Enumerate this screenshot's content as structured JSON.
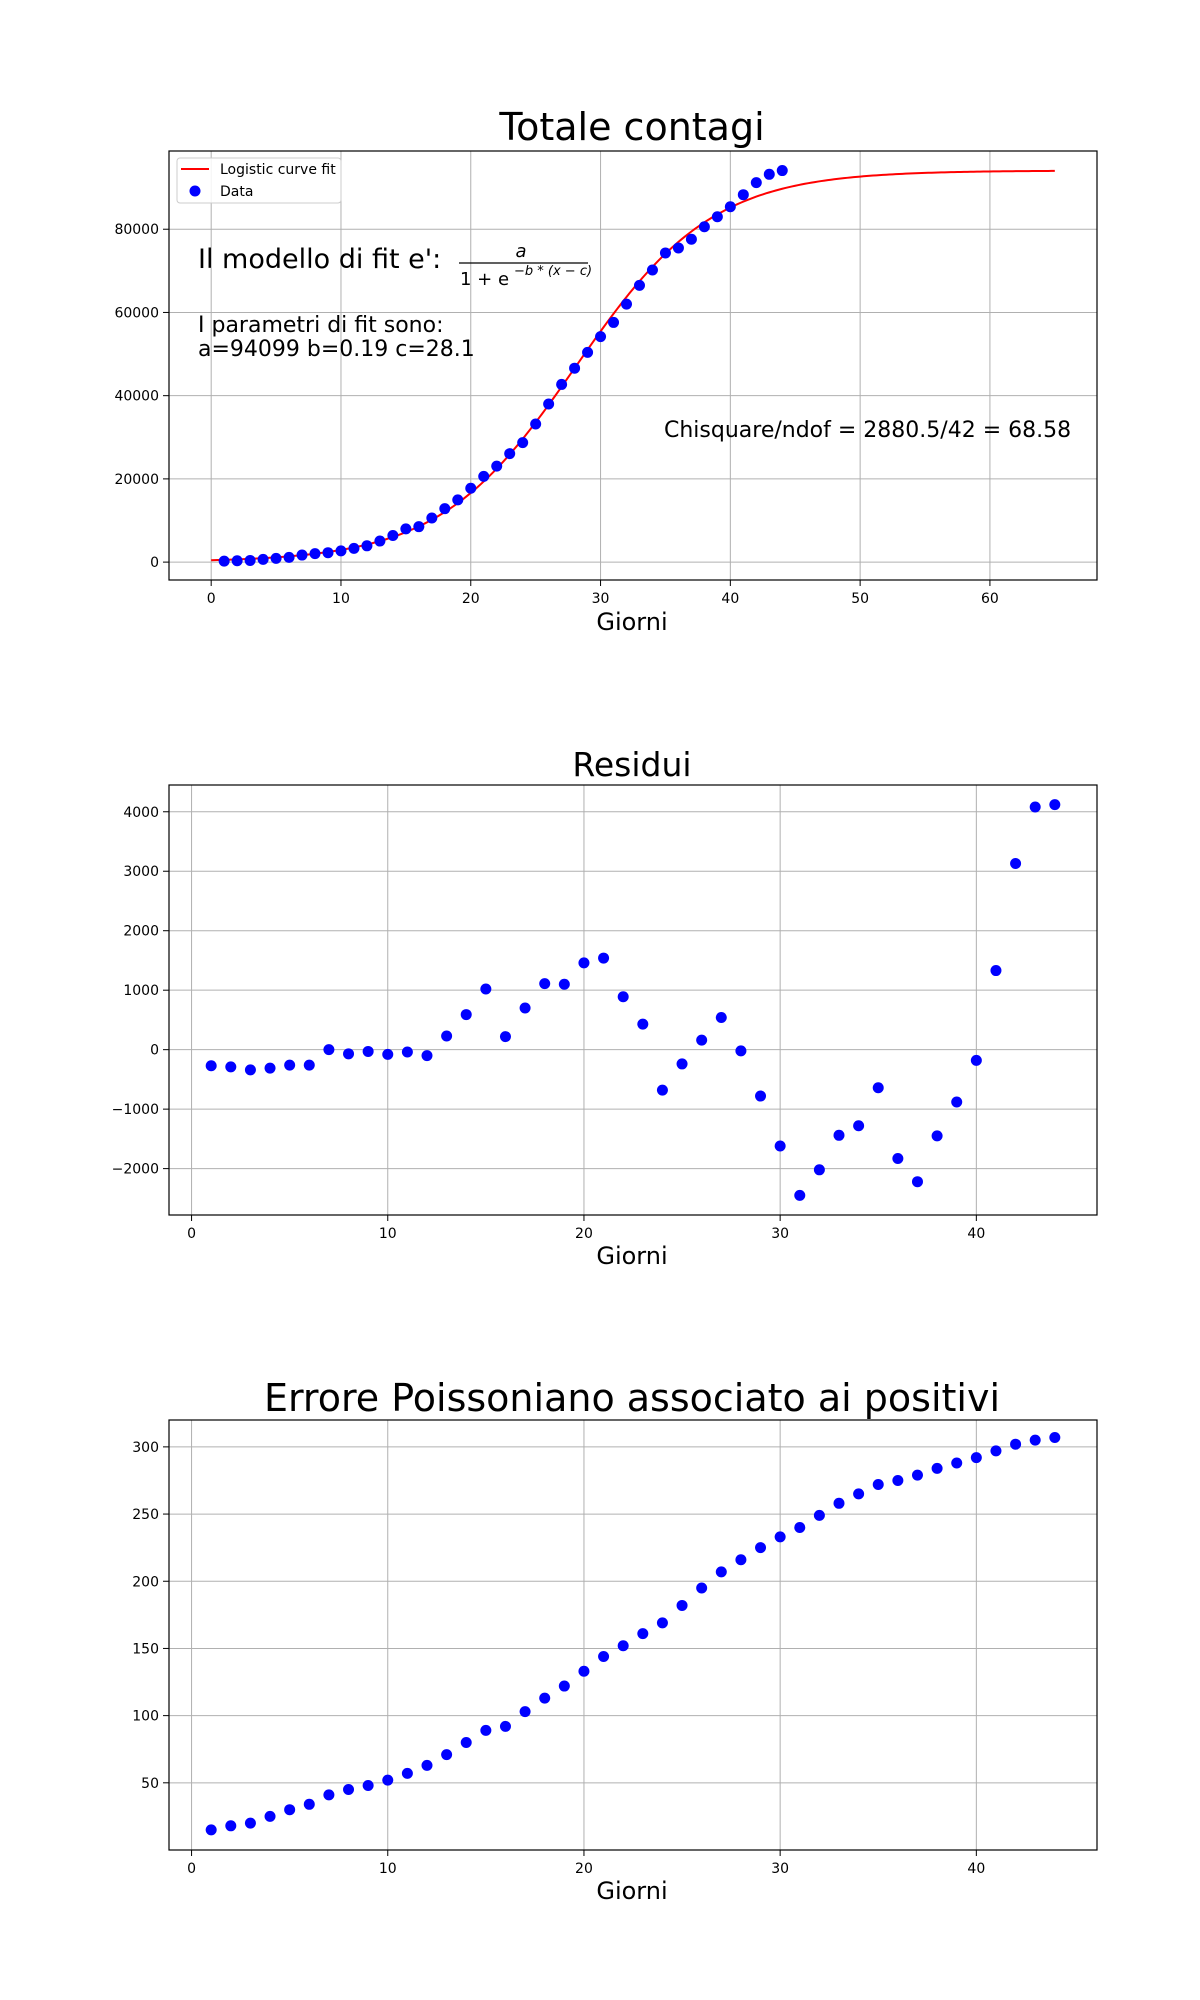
{
  "chart_data": [
    {
      "type": "scatter",
      "title": "Totale contagi",
      "xlabel": "Giorni",
      "ylabel": "",
      "xlim": [
        -3.25,
        68.25
      ],
      "ylim": [
        -4300,
        98800
      ],
      "xticks": [
        0,
        10,
        20,
        30,
        40,
        50,
        60
      ],
      "yticks": [
        0,
        20000,
        40000,
        60000,
        80000
      ],
      "grid": true,
      "legend": "top-left",
      "legend_entries": [
        "Logistic curve fit",
        "Data"
      ],
      "model_text": "Il modello di fit e':",
      "formula": {
        "numerator": "a",
        "denominator": "1 + e",
        "exponent": "−b * (x − c)"
      },
      "params_line1": "I parametri di fit sono:",
      "params_line2": "a=94099 b=0.19 c=28.1",
      "chisq_text": "Chisquare/ndof = 2880.5/42 = 68.58",
      "fit": {
        "a": 94099,
        "b": 0.19,
        "c": 28.1,
        "x_start": 0,
        "x_end": 65,
        "color": "#ff0000"
      },
      "series": [
        {
          "name": "Data",
          "color": "#0000ff",
          "x": [
            1,
            2,
            3,
            4,
            5,
            6,
            7,
            8,
            9,
            10,
            11,
            12,
            13,
            14,
            15,
            16,
            17,
            18,
            19,
            20,
            21,
            22,
            23,
            24,
            25,
            26,
            27,
            28,
            29,
            30,
            31,
            32,
            33,
            34,
            35,
            36,
            37,
            38,
            39,
            40,
            41,
            42,
            43,
            44
          ],
          "y": [
            229,
            322,
            400,
            650,
            888,
            1128,
            1694,
            2036,
            2263,
            2706,
            3296,
            3916,
            5061,
            6387,
            7985,
            8514,
            10590,
            12839,
            14955,
            17750,
            20603,
            23073,
            26062,
            28710,
            33190,
            38000,
            42700,
            46600,
            50400,
            54200,
            57600,
            62000,
            66500,
            70200,
            74300,
            75500,
            77600,
            80600,
            83000,
            85400,
            88300,
            91200,
            93200,
            94100
          ]
        }
      ]
    },
    {
      "type": "scatter",
      "title": "Residui",
      "xlabel": "Giorni",
      "ylabel": "",
      "xlim": [
        -1.15,
        46.15
      ],
      "ylim": [
        -2780,
        4450
      ],
      "xticks": [
        0,
        10,
        20,
        30,
        40
      ],
      "yticks": [
        -2000,
        -1000,
        0,
        1000,
        2000,
        3000,
        4000
      ],
      "grid": true,
      "series": [
        {
          "name": "",
          "color": "#0000ff",
          "x": [
            1,
            2,
            3,
            4,
            5,
            6,
            7,
            8,
            9,
            10,
            11,
            12,
            13,
            14,
            15,
            16,
            17,
            18,
            19,
            20,
            21,
            22,
            23,
            24,
            25,
            26,
            27,
            28,
            29,
            30,
            31,
            32,
            33,
            34,
            35,
            36,
            37,
            38,
            39,
            40,
            41,
            42,
            43,
            44
          ],
          "y": [
            -270,
            -290,
            -340,
            -310,
            -260,
            -260,
            0,
            -70,
            -30,
            -80,
            -40,
            -100,
            230,
            590,
            1020,
            220,
            700,
            1110,
            1100,
            1460,
            1540,
            890,
            430,
            -680,
            -240,
            160,
            540,
            -20,
            -780,
            -1620,
            -2450,
            -2020,
            -1440,
            -1280,
            -640,
            -1830,
            -2220,
            -1450,
            -880,
            -180,
            1330,
            3130,
            4080,
            4120
          ]
        }
      ]
    },
    {
      "type": "scatter",
      "title": "Errore Poissoniano associato ai positivi",
      "xlabel": "Giorni",
      "ylabel": "",
      "xlim": [
        -1.15,
        46.15
      ],
      "ylim": [
        0,
        320
      ],
      "xticks": [
        0,
        10,
        20,
        30,
        40
      ],
      "yticks": [
        50,
        100,
        150,
        200,
        250,
        300
      ],
      "grid": true,
      "series": [
        {
          "name": "",
          "color": "#0000ff",
          "x": [
            1,
            2,
            3,
            4,
            5,
            6,
            7,
            8,
            9,
            10,
            11,
            12,
            13,
            14,
            15,
            16,
            17,
            18,
            19,
            20,
            21,
            22,
            23,
            24,
            25,
            26,
            27,
            28,
            29,
            30,
            31,
            32,
            33,
            34,
            35,
            36,
            37,
            38,
            39,
            40,
            41,
            42,
            43,
            44
          ],
          "y": [
            15,
            18,
            20,
            25,
            30,
            34,
            41,
            45,
            48,
            52,
            57,
            63,
            71,
            80,
            89,
            92,
            103,
            113,
            122,
            133,
            144,
            152,
            161,
            169,
            182,
            195,
            207,
            216,
            225,
            233,
            240,
            249,
            258,
            265,
            272,
            275,
            279,
            284,
            288,
            292,
            297,
            302,
            305,
            307
          ]
        }
      ]
    }
  ]
}
